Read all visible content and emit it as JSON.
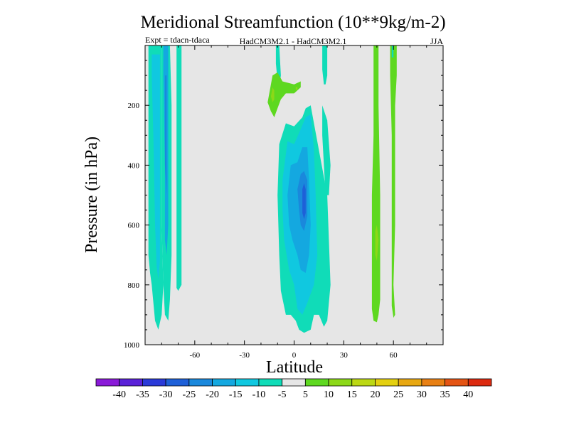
{
  "chart_data": {
    "type": "contour",
    "title": "Meridional Streamfunction (10**9kg/m-2)",
    "subtitle_left": "Expt = tdacn-tdaca",
    "subtitle_center": "HadCM3M2.1 - HadCM3M2.1",
    "subtitle_right": "JJA",
    "xlabel": "Latitude",
    "ylabel": "Pressure (in hPa)",
    "xlim": [
      -90,
      90
    ],
    "ylim": [
      1000,
      0
    ],
    "x_ticks": [
      -60,
      -30,
      0,
      30,
      60
    ],
    "x_tick_labels": [
      "-60",
      "-30",
      "0",
      "30",
      "60"
    ],
    "y_ticks": [
      200,
      400,
      600,
      800,
      1000
    ],
    "y_tick_labels": [
      "200",
      "400",
      "600",
      "800",
      "1000"
    ],
    "background_color": "#e6e6e6",
    "colorbar": {
      "levels": [
        "-40",
        "-35",
        "-30",
        "-25",
        "-20",
        "-15",
        "-10",
        "-5",
        "5",
        "10",
        "15",
        "20",
        "25",
        "30",
        "35",
        "40"
      ],
      "colors": [
        "#8a1ad8",
        "#5a22d8",
        "#2a3ad8",
        "#1e60d8",
        "#1a88dc",
        "#14a8e0",
        "#10c8e0",
        "#10dcb8",
        "#e6e6e6",
        "#5ed820",
        "#8cd818",
        "#bcd814",
        "#e4d010",
        "#e8a812",
        "#e88014",
        "#e45414",
        "#dc2a10"
      ]
    },
    "regions": [
      {
        "fill": "#10dcb8",
        "points": [
          [
            -88,
            0
          ],
          [
            -80,
            0
          ],
          [
            -80,
            100
          ],
          [
            -80,
            300
          ],
          [
            -80,
            600
          ],
          [
            -79,
            800
          ],
          [
            -80,
            900
          ],
          [
            -82,
            950
          ],
          [
            -84,
            920
          ],
          [
            -86,
            800
          ],
          [
            -87,
            760
          ],
          [
            -88,
            700
          ],
          [
            -88,
            400
          ],
          [
            -88,
            100
          ]
        ]
      },
      {
        "fill": "#10c8e0",
        "points": [
          [
            -86,
            30
          ],
          [
            -81,
            30
          ],
          [
            -81,
            300
          ],
          [
            -81,
            600
          ],
          [
            -81,
            720
          ],
          [
            -82,
            780
          ],
          [
            -83,
            740
          ],
          [
            -84,
            600
          ],
          [
            -85,
            300
          ],
          [
            -86,
            100
          ]
        ]
      },
      {
        "fill": "#10dcb8",
        "points": [
          [
            -80,
            0
          ],
          [
            -75,
            0
          ],
          [
            -74,
            200
          ],
          [
            -74,
            500
          ],
          [
            -74,
            700
          ],
          [
            -75,
            850
          ],
          [
            -76,
            920
          ],
          [
            -78,
            900
          ],
          [
            -79,
            800
          ],
          [
            -80,
            600
          ],
          [
            -80,
            300
          ]
        ]
      },
      {
        "fill": "#14a8e0",
        "points": [
          [
            -79,
            0
          ],
          [
            -76,
            0
          ],
          [
            -76,
            200
          ],
          [
            -76,
            400
          ],
          [
            -76,
            600
          ],
          [
            -77,
            700
          ],
          [
            -78,
            650
          ],
          [
            -78,
            400
          ],
          [
            -79,
            100
          ]
        ]
      },
      {
        "fill": "#1a88dc",
        "points": [
          [
            -78,
            100
          ],
          [
            -77,
            100
          ],
          [
            -77,
            300
          ],
          [
            -77,
            500
          ],
          [
            -78,
            400
          ]
        ]
      },
      {
        "fill": "#10dcb8",
        "points": [
          [
            -71,
            0
          ],
          [
            -68,
            0
          ],
          [
            -68,
            400
          ],
          [
            -68,
            800
          ],
          [
            -70,
            820
          ],
          [
            -71,
            810
          ],
          [
            -71,
            500
          ]
        ]
      },
      {
        "fill": "#10dcb8",
        "points": [
          [
            -11,
            0
          ],
          [
            -9,
            0
          ],
          [
            -8,
            100
          ],
          [
            -9,
            140
          ],
          [
            -10,
            120
          ],
          [
            -11,
            60
          ]
        ]
      },
      {
        "fill": "#10dcb8",
        "points": [
          [
            17,
            0
          ],
          [
            20,
            0
          ],
          [
            20,
            100
          ],
          [
            19,
            130
          ],
          [
            18,
            130
          ],
          [
            17,
            80
          ]
        ]
      },
      {
        "fill": "#5ed820",
        "points": [
          [
            -15,
            160
          ],
          [
            -13,
            100
          ],
          [
            -10,
            90
          ],
          [
            -7,
            120
          ],
          [
            0,
            130
          ],
          [
            4,
            120
          ],
          [
            4,
            140
          ],
          [
            0,
            160
          ],
          [
            -5,
            160
          ],
          [
            -8,
            180
          ],
          [
            -10,
            210
          ],
          [
            -12,
            240
          ],
          [
            -14,
            220
          ],
          [
            -16,
            190
          ]
        ]
      },
      {
        "fill": "#8cd818",
        "points": [
          [
            -14,
            170
          ],
          [
            -13,
            140
          ],
          [
            -12,
            150
          ],
          [
            -12,
            180
          ],
          [
            -13,
            190
          ]
        ]
      },
      {
        "fill": "#8cd818",
        "points": [
          [
            1,
            140
          ],
          [
            2,
            138
          ],
          [
            2,
            148
          ],
          [
            1,
            148
          ]
        ]
      },
      {
        "fill": "#10dcb8",
        "points": [
          [
            -9,
            330
          ],
          [
            -5,
            260
          ],
          [
            0,
            270
          ],
          [
            5,
            240
          ],
          [
            7,
            210
          ],
          [
            10,
            200
          ],
          [
            12,
            260
          ],
          [
            15,
            350
          ],
          [
            20,
            500
          ],
          [
            22,
            800
          ],
          [
            20,
            920
          ],
          [
            18,
            940
          ],
          [
            15,
            900
          ],
          [
            12,
            900
          ],
          [
            10,
            950
          ],
          [
            6,
            960
          ],
          [
            3,
            950
          ],
          [
            1,
            920
          ],
          [
            -2,
            900
          ],
          [
            -5,
            900
          ],
          [
            -8,
            820
          ],
          [
            -9,
            700
          ],
          [
            -10,
            500
          ]
        ]
      },
      {
        "fill": "#10c8e0",
        "points": [
          [
            -7,
            450
          ],
          [
            -4,
            320
          ],
          [
            0,
            330
          ],
          [
            4,
            280
          ],
          [
            7,
            240
          ],
          [
            10,
            230
          ],
          [
            12,
            350
          ],
          [
            13,
            500
          ],
          [
            14,
            700
          ],
          [
            12,
            800
          ],
          [
            8,
            860
          ],
          [
            5,
            900
          ],
          [
            2,
            880
          ],
          [
            0,
            800
          ],
          [
            -3,
            750
          ],
          [
            -6,
            650
          ],
          [
            -7,
            550
          ]
        ]
      },
      {
        "fill": "#14a8e0",
        "points": [
          [
            -4,
            500
          ],
          [
            -2,
            400
          ],
          [
            2,
            390
          ],
          [
            5,
            340
          ],
          [
            8,
            340
          ],
          [
            9,
            450
          ],
          [
            10,
            600
          ],
          [
            9,
            700
          ],
          [
            7,
            760
          ],
          [
            4,
            750
          ],
          [
            2,
            700
          ],
          [
            -1,
            650
          ],
          [
            -3,
            600
          ]
        ]
      },
      {
        "fill": "#1a88dc",
        "points": [
          [
            2,
            480
          ],
          [
            4,
            430
          ],
          [
            6,
            420
          ],
          [
            8,
            450
          ],
          [
            8,
            570
          ],
          [
            6,
            620
          ],
          [
            4,
            600
          ],
          [
            3,
            550
          ]
        ]
      },
      {
        "fill": "#1e60d8",
        "points": [
          [
            5,
            480
          ],
          [
            6,
            460
          ],
          [
            7,
            480
          ],
          [
            7,
            560
          ],
          [
            6,
            580
          ],
          [
            5,
            560
          ]
        ]
      },
      {
        "fill": "#10dcb8",
        "points": [
          [
            17,
            200
          ],
          [
            20,
            250
          ],
          [
            22,
            400
          ],
          [
            21,
            500
          ],
          [
            19,
            500
          ],
          [
            18,
            400
          ],
          [
            17,
            300
          ]
        ]
      },
      {
        "fill": "#5ed820",
        "points": [
          [
            48,
            0
          ],
          [
            51,
            0
          ],
          [
            51,
            200
          ],
          [
            52,
            500
          ],
          [
            52,
            700
          ],
          [
            52,
            850
          ],
          [
            51,
            900
          ],
          [
            50,
            925
          ],
          [
            48,
            920
          ],
          [
            47,
            880
          ],
          [
            47,
            700
          ],
          [
            47,
            500
          ],
          [
            48,
            300
          ]
        ]
      },
      {
        "fill": "#8cd818",
        "points": [
          [
            49,
            620
          ],
          [
            50,
            600
          ],
          [
            51,
            650
          ],
          [
            50,
            720
          ],
          [
            49,
            700
          ]
        ]
      },
      {
        "fill": "#5ed820",
        "points": [
          [
            58,
            0
          ],
          [
            62,
            0
          ],
          [
            62,
            100
          ],
          [
            61,
            200
          ],
          [
            61,
            400
          ],
          [
            61,
            600
          ],
          [
            60,
            800
          ],
          [
            61,
            900
          ],
          [
            60,
            910
          ],
          [
            59,
            870
          ],
          [
            59,
            600
          ],
          [
            59,
            300
          ],
          [
            58,
            100
          ]
        ]
      },
      {
        "fill": "#10dcb8",
        "points": [
          [
            59,
            0
          ],
          [
            60,
            0
          ],
          [
            60,
            40
          ],
          [
            59,
            40
          ]
        ]
      }
    ]
  }
}
